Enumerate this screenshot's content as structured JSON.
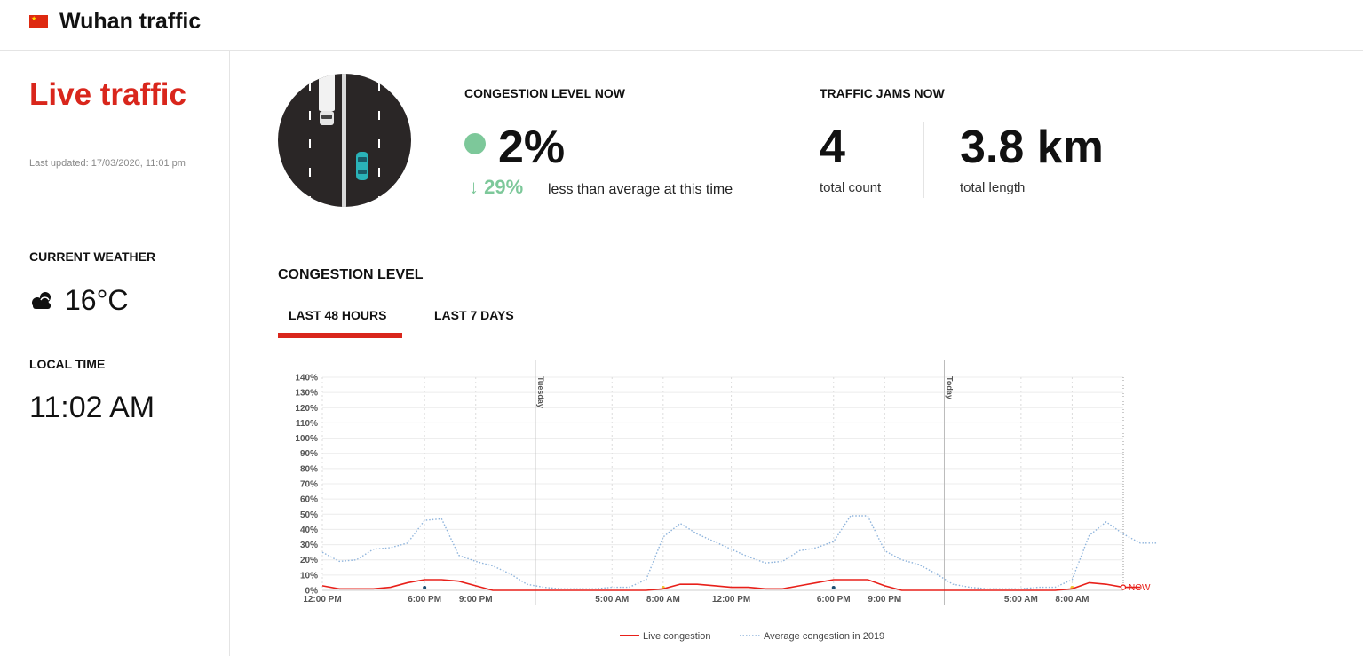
{
  "header": {
    "title": "Wuhan traffic",
    "flag_icon": "china-flag-icon"
  },
  "sidebar": {
    "title": "Live traffic",
    "last_updated": "Last updated: 17/03/2020, 11:01 pm",
    "weather_label": "CURRENT WEATHER",
    "weather_icon": "cloud-sun-icon",
    "temperature": "16°C",
    "local_time_label": "LOCAL TIME",
    "local_time": "11:02 AM"
  },
  "congestion_now": {
    "label": "CONGESTION LEVEL NOW",
    "value": "2%",
    "status_color": "#7dc89a",
    "delta": "↓ 29%",
    "delta_text": "less than average at this time"
  },
  "jams_now": {
    "label": "TRAFFIC JAMS NOW",
    "count": "4",
    "count_label": "total count",
    "length": "3.8 km",
    "length_label": "total length"
  },
  "congestion_section": {
    "title": "CONGESTION LEVEL",
    "tabs": [
      {
        "label": "LAST 48 HOURS",
        "active": true
      },
      {
        "label": "LAST 7 DAYS",
        "active": false
      }
    ]
  },
  "colors": {
    "accent": "#d9261c",
    "live": "#e8201a",
    "average": "#8fb4dc"
  },
  "chart_data": {
    "type": "line",
    "x_range": [
      0,
      47
    ],
    "y_range": [
      0,
      140
    ],
    "y_ticks": [
      "0%",
      "10%",
      "20%",
      "30%",
      "40%",
      "50%",
      "60%",
      "70%",
      "80%",
      "90%",
      "100%",
      "110%",
      "120%",
      "130%",
      "140%"
    ],
    "x_ticks": [
      {
        "x": 0,
        "label": "12:00 PM"
      },
      {
        "x": 6,
        "label": "6:00 PM"
      },
      {
        "x": 9,
        "label": "9:00 PM"
      },
      {
        "x": 17,
        "label": "5:00 AM"
      },
      {
        "x": 20,
        "label": "8:00 AM"
      },
      {
        "x": 24,
        "label": "12:00 PM"
      },
      {
        "x": 30,
        "label": "6:00 PM"
      },
      {
        "x": 33,
        "label": "9:00 PM"
      },
      {
        "x": 41,
        "label": "5:00 AM"
      },
      {
        "x": 44,
        "label": "8:00 AM"
      }
    ],
    "day_markers": [
      {
        "x": 12.5,
        "label": "Tuesday"
      },
      {
        "x": 36.5,
        "label": "Today"
      }
    ],
    "now_label": "NOW",
    "legend_position": "bottom",
    "series": [
      {
        "name": "Live congestion",
        "style": "solid",
        "values": [
          3,
          1,
          1,
          1,
          2,
          5,
          7,
          7,
          6,
          3,
          0,
          0,
          0,
          0,
          0,
          0,
          0,
          0,
          0,
          0,
          1,
          4,
          4,
          3,
          2,
          2,
          1,
          1,
          3,
          5,
          7,
          7,
          7,
          3,
          0,
          0,
          0,
          0,
          0,
          0,
          0,
          0,
          0,
          0,
          1,
          5,
          4,
          2,
          2
        ]
      },
      {
        "name": "Average congestion in 2019",
        "style": "dotted",
        "values": [
          25,
          19,
          20,
          27,
          28,
          31,
          46,
          47,
          23,
          19,
          16,
          11,
          4,
          2,
          1,
          1,
          1,
          2,
          2,
          7,
          35,
          44,
          37,
          32,
          27,
          22,
          18,
          19,
          26,
          28,
          32,
          49,
          49,
          26,
          20,
          17,
          11,
          4,
          2,
          1,
          1,
          1,
          2,
          2,
          7,
          36,
          45,
          37,
          31,
          31
        ]
      }
    ]
  }
}
